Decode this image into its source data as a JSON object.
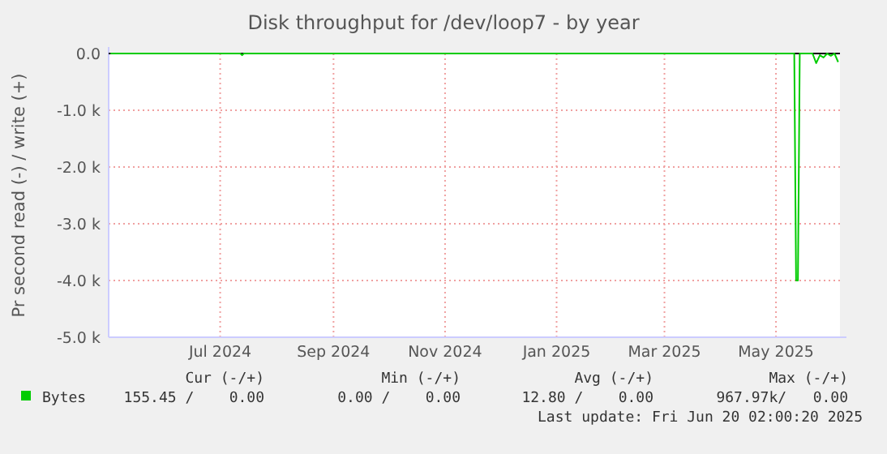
{
  "chart_data": {
    "type": "line",
    "title": "Disk throughput for /dev/loop7 - by year",
    "ylabel": "Pr second read (-) / write (+)",
    "x": [
      "2024-05-17",
      "2024-07-27",
      "2024-07-28",
      "2024-07-29",
      "2025-05-26",
      "2025-05-27",
      "2025-05-28",
      "2025-05-29",
      "2025-06-05",
      "2025-06-07",
      "2025-06-09",
      "2025-06-11",
      "2025-06-13",
      "2025-06-15",
      "2025-06-17",
      "2025-06-19"
    ],
    "series": [
      {
        "name": "Bytes",
        "color": "#00cc00",
        "values": [
          0,
          0,
          -30,
          0,
          0,
          -4000,
          -4000,
          0,
          0,
          -170,
          -30,
          -70,
          0,
          -40,
          0,
          -150
        ]
      }
    ],
    "xlim": [
      "2024-05-16",
      "2025-06-20"
    ],
    "xticks": [
      {
        "value": "2024-07-16",
        "label": "Jul 2024"
      },
      {
        "value": "2024-09-16",
        "label": "Sep 2024"
      },
      {
        "value": "2024-11-16",
        "label": "Nov 2024"
      },
      {
        "value": "2025-01-16",
        "label": "Jan 2025"
      },
      {
        "value": "2025-03-16",
        "label": "Mar 2025"
      },
      {
        "value": "2025-05-16",
        "label": "May 2025"
      }
    ],
    "ylim": [
      -5000,
      0
    ],
    "yticks": [
      {
        "value": 0,
        "label": "0.0"
      },
      {
        "value": -1000,
        "label": "-1.0 k"
      },
      {
        "value": -2000,
        "label": "-2.0 k"
      },
      {
        "value": -3000,
        "label": "-3.0 k"
      },
      {
        "value": -4000,
        "label": "-4.0 k"
      },
      {
        "value": -5000,
        "label": "-5.0 k"
      }
    ],
    "grid": true,
    "legend": "bottom",
    "marker": "none",
    "line_style": "solid",
    "annotations": [
      "Cur (-/+)",
      "Min (-/+)",
      "Avg (-/+)",
      "Max (-/+)",
      "155.45 /    0.00",
      "  0.00 /    0.00",
      " 12.80 /    0.00",
      "967.97k/   0.00",
      "Last update: Fri Jun 20 02:00:20 2025"
    ]
  }
}
